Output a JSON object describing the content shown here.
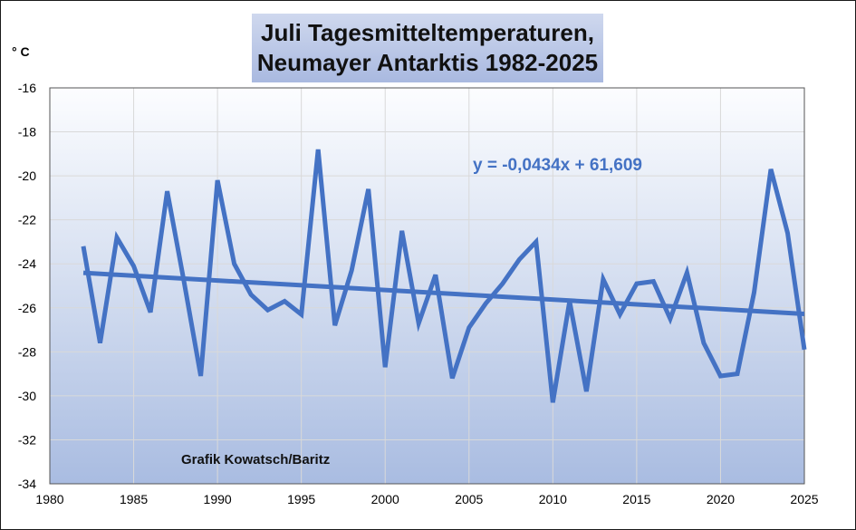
{
  "chart_data": {
    "type": "line",
    "title_lines": [
      "Juli Tagesmitteltemperaturen,",
      "Neumayer Antarktis 1982-2025"
    ],
    "y_unit_label": "° C",
    "xlim": [
      1980,
      2025
    ],
    "ylim": [
      -34,
      -16
    ],
    "x_ticks": [
      1980,
      1985,
      1990,
      1995,
      2000,
      2005,
      2010,
      2015,
      2020,
      2025
    ],
    "y_ticks": [
      -34,
      -32,
      -30,
      -28,
      -26,
      -24,
      -22,
      -20,
      -18,
      -16
    ],
    "grid": true,
    "series": [
      {
        "color": "#4472c4",
        "x": [
          1982,
          1983,
          1984,
          1985,
          1986,
          1987,
          1988,
          1989,
          1990,
          1991,
          1992,
          1993,
          1994,
          1995,
          1996,
          1997,
          1998,
          1999,
          2000,
          2001,
          2002,
          2003,
          2004,
          2005,
          2006,
          2007,
          2008,
          2009,
          2010,
          2011,
          2012,
          2013,
          2014,
          2015,
          2016,
          2017,
          2018,
          2019,
          2020,
          2021,
          2022,
          2023,
          2024,
          2025
        ],
        "y": [
          -23.2,
          -27.6,
          -22.8,
          -24.1,
          -26.2,
          -20.7,
          -24.8,
          -29.1,
          -20.2,
          -24.0,
          -25.4,
          -26.1,
          -25.7,
          -26.3,
          -18.8,
          -26.8,
          -24.3,
          -20.6,
          -28.7,
          -22.5,
          -26.7,
          -24.5,
          -29.2,
          -26.9,
          -25.8,
          -24.9,
          -23.8,
          -23.0,
          -30.3,
          -25.7,
          -29.8,
          -24.7,
          -26.3,
          -24.9,
          -24.8,
          -26.5,
          -24.4,
          -27.6,
          -29.1,
          -29.0,
          -25.3,
          -19.7,
          -22.6,
          -27.9
        ]
      }
    ],
    "trendline": {
      "slope": -0.0434,
      "intercept": 61.609,
      "color": "#4472c4",
      "x_range": [
        1982,
        2025
      ]
    },
    "equation_label": "y = -0,0434x + 61,609",
    "credit": "Grafik  Kowatsch/Baritz"
  }
}
